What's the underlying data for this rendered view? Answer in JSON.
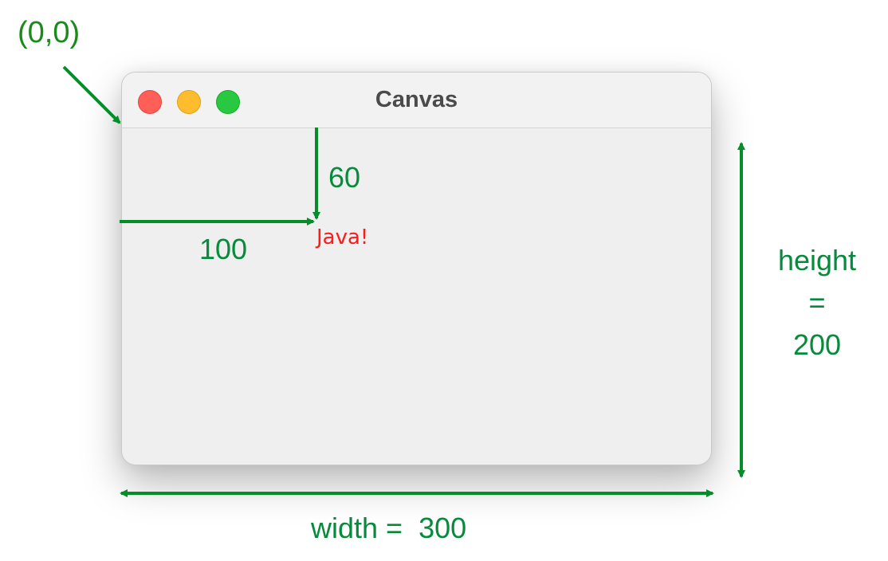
{
  "window": {
    "title": "Canvas"
  },
  "canvas": {
    "text": "Java!",
    "text_color": "#ff0000"
  },
  "annotations": {
    "origin": "(0,0)",
    "y_offset": "60",
    "x_offset": "100",
    "height_line1": "height",
    "height_line2": "=",
    "height_line3": "200",
    "width": "width =  300",
    "color": "#078a3c"
  }
}
